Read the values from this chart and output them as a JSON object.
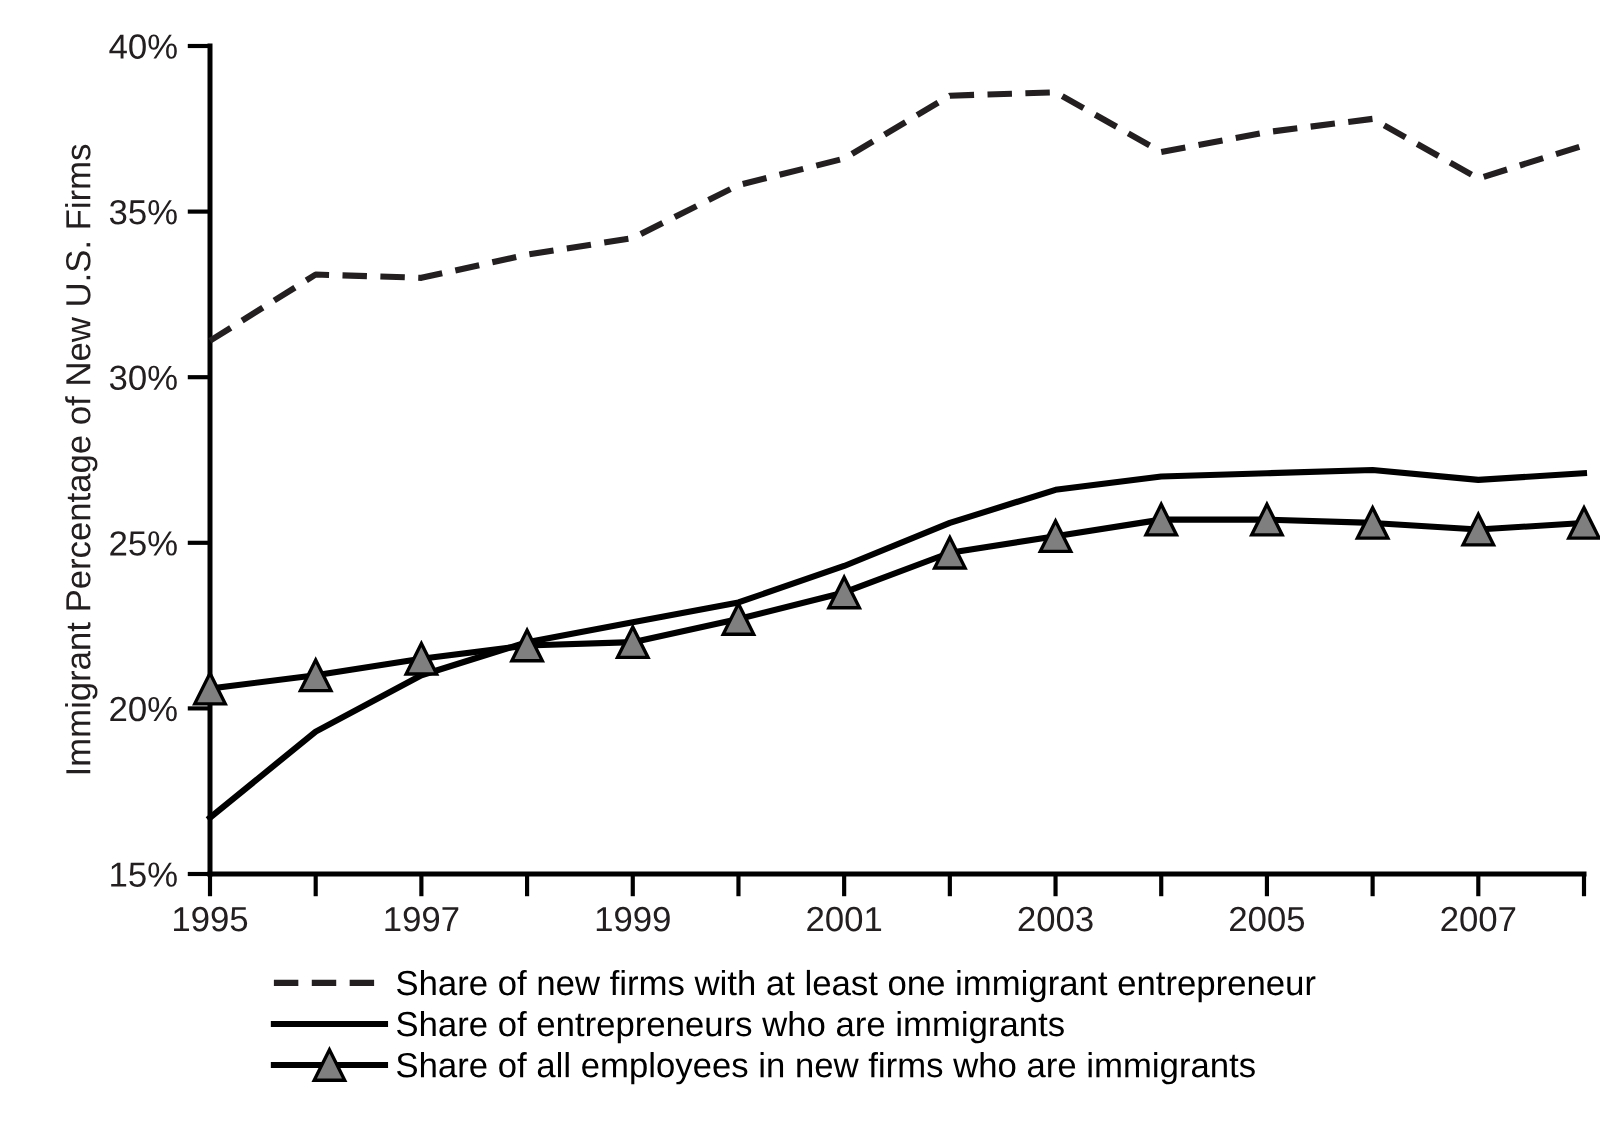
{
  "chart_data": {
    "type": "line",
    "ylabel": "Immigrant Percentage of New U.S. Firms",
    "x": [
      1995,
      1996,
      1997,
      1998,
      1999,
      2000,
      2001,
      2002,
      2003,
      2004,
      2005,
      2006,
      2007,
      2008
    ],
    "xlim": [
      1995,
      2008
    ],
    "xticks": [
      1995,
      {
        "value": 1996,
        "label": null
      },
      1997,
      {
        "value": 1998,
        "label": null
      },
      1999,
      {
        "value": 2000,
        "label": null
      },
      2001,
      {
        "value": 2002,
        "label": null
      },
      2003,
      {
        "value": 2004,
        "label": null
      },
      2005,
      {
        "value": 2006,
        "label": null
      },
      2007,
      {
        "value": 2008,
        "label": null
      }
    ],
    "ylim": [
      15,
      40
    ],
    "yticks": [
      {
        "value": 15,
        "label": "15%"
      },
      {
        "value": 20,
        "label": "20%"
      },
      {
        "value": 25,
        "label": "25%"
      },
      {
        "value": 30,
        "label": "30%"
      },
      {
        "value": 35,
        "label": "35%"
      },
      {
        "value": 40,
        "label": "40%"
      }
    ],
    "grid": false,
    "legend": "bottom",
    "series": [
      {
        "name": "Share of new firms with at least one immigrant entrepreneur",
        "color": "#231f20",
        "line_style": "dashed",
        "marker": "none",
        "values": [
          31.1,
          33.1,
          33.0,
          33.7,
          34.2,
          35.8,
          36.6,
          38.5,
          38.6,
          36.8,
          37.4,
          37.8,
          36.0,
          37.0
        ]
      },
      {
        "name": "Share of entrepreneurs who are immigrants",
        "color": "#000000",
        "line_style": "solid",
        "marker": "none",
        "values": [
          16.7,
          19.3,
          21.0,
          22.0,
          22.6,
          23.2,
          24.3,
          25.6,
          26.6,
          27.0,
          27.1,
          27.2,
          26.9,
          27.1
        ]
      },
      {
        "name": "Share of all employees in new firms who are immigrants",
        "color": "#000000",
        "line_style": "solid",
        "marker": "triangle",
        "values": [
          20.6,
          21.0,
          21.5,
          21.9,
          22.0,
          22.7,
          23.5,
          24.7,
          25.2,
          25.7,
          25.7,
          25.6,
          25.4,
          25.6
        ]
      }
    ]
  }
}
